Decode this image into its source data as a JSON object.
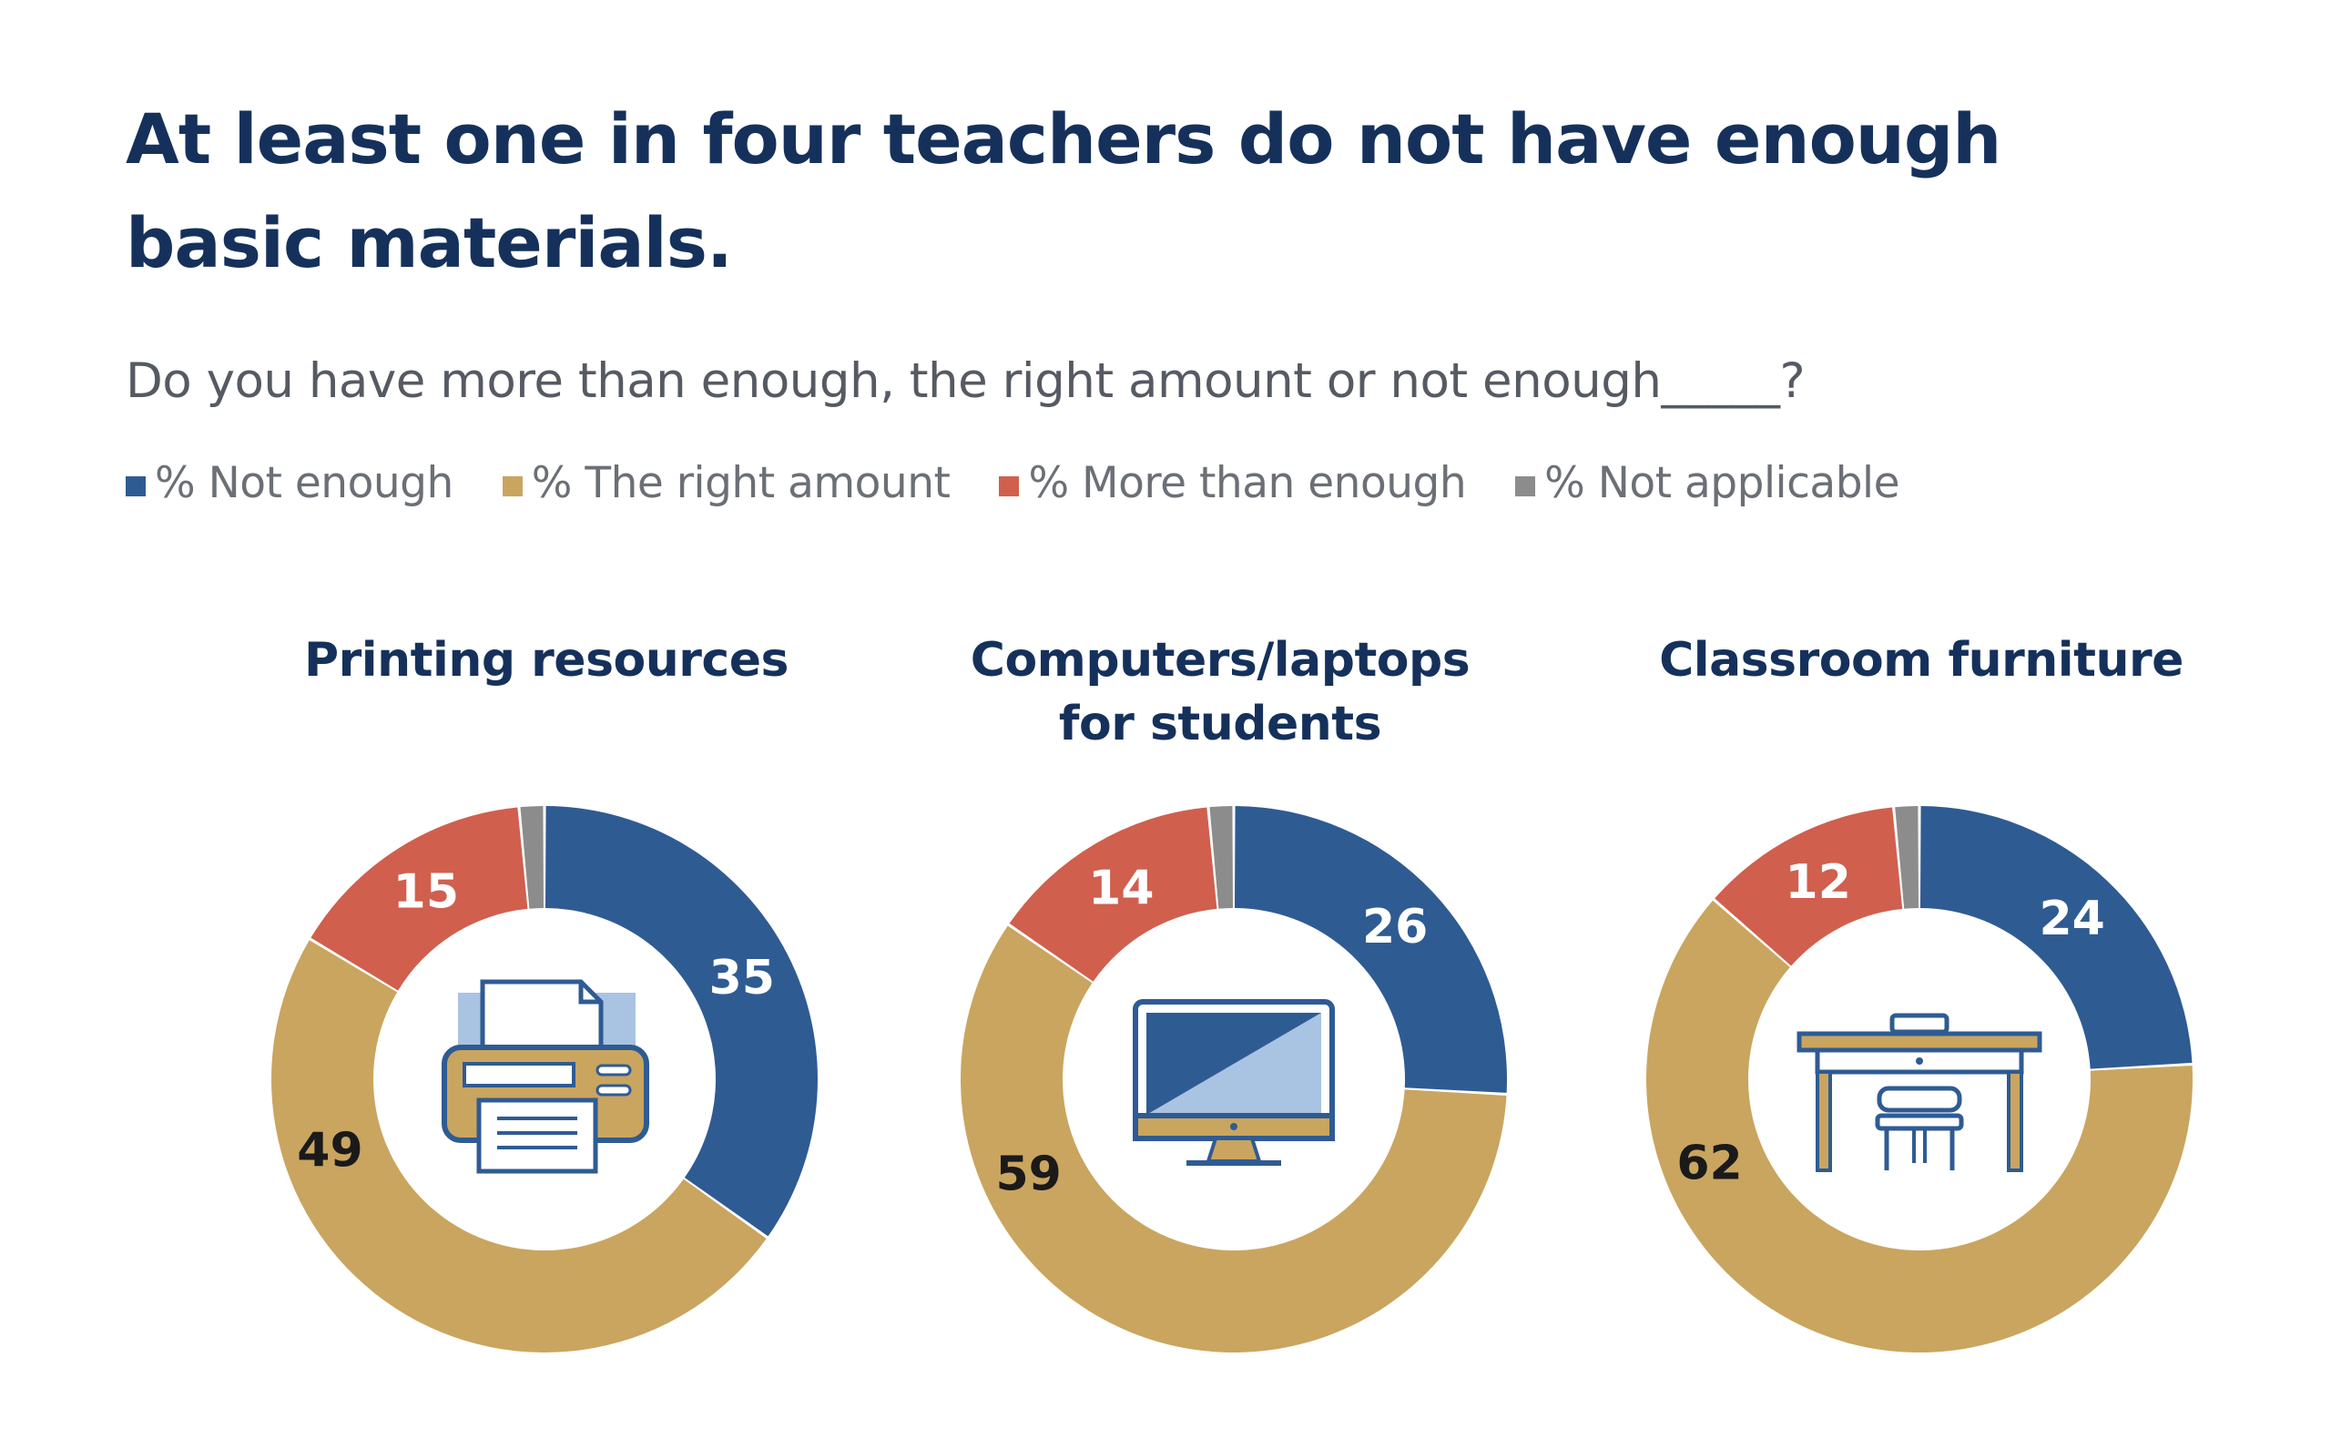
{
  "title": "At least one in four teachers do not have enough basic materials.",
  "subtitle": "Do you have more than enough, the right amount or not enough_____?",
  "legend": [
    {
      "label": "% Not enough",
      "color": "#2f5b93"
    },
    {
      "label": "% The right amount",
      "color": "#c9a55f"
    },
    {
      "label": "% More than enough",
      "color": "#d05f4e"
    },
    {
      "label": "% Not applicable",
      "color": "#8c8c8c"
    }
  ],
  "chart_data": [
    {
      "type": "pie",
      "title": "Printing resources",
      "icon": "printer-icon",
      "categories": [
        "% Not enough",
        "% The right amount",
        "% More than enough",
        "% Not applicable"
      ],
      "values": [
        35,
        49,
        15,
        1.5
      ],
      "labels": [
        "35",
        "49",
        "15",
        ""
      ]
    },
    {
      "type": "pie",
      "title": "Computers/laptops for students",
      "icon": "computer-monitor-icon",
      "categories": [
        "% Not enough",
        "% The right amount",
        "% More than enough",
        "% Not applicable"
      ],
      "values": [
        26,
        59,
        14,
        1.5
      ],
      "labels": [
        "26",
        "59",
        "14",
        ""
      ]
    },
    {
      "type": "pie",
      "title": "Classroom furniture",
      "icon": "desk-chair-icon",
      "categories": [
        "% Not enough",
        "% The right amount",
        "% More than enough",
        "% Not applicable"
      ],
      "values": [
        24,
        62,
        12,
        1.5
      ],
      "labels": [
        "24",
        "62",
        "12",
        ""
      ]
    }
  ]
}
